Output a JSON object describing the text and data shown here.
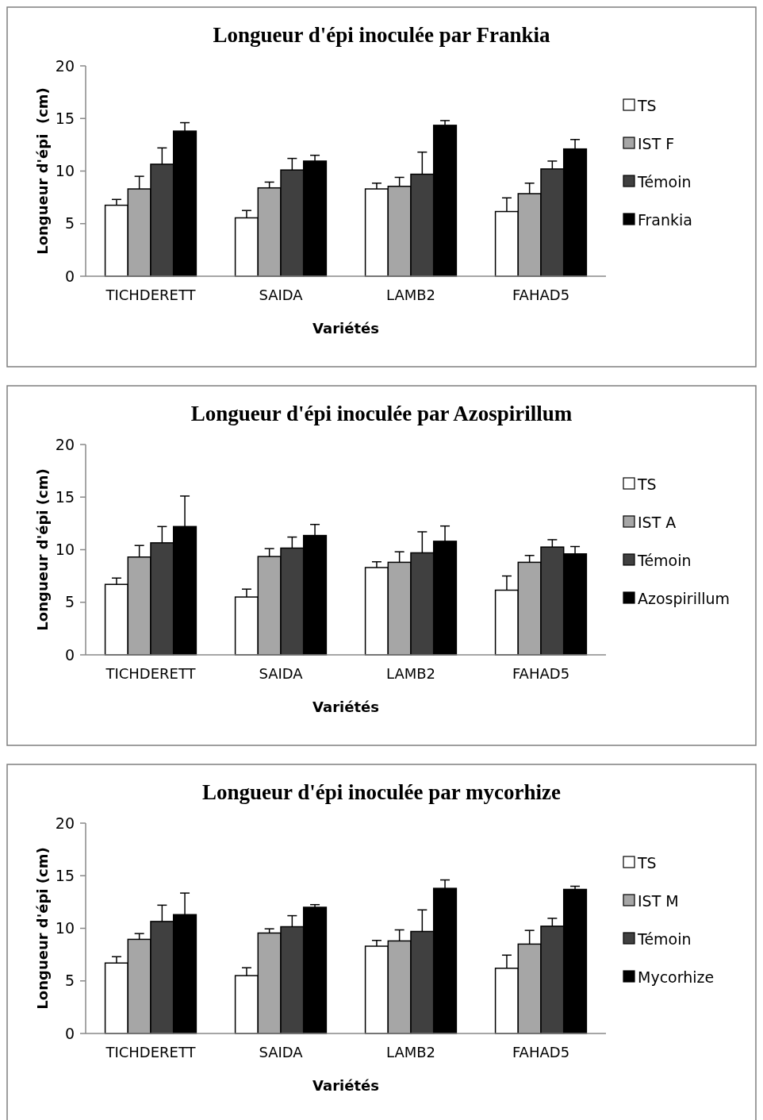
{
  "chart_data": [
    {
      "type": "bar",
      "title": "Longueur d'épi inoculée par Frankia",
      "xlabel": "Variétés",
      "ylabel": "Longueur d'épi  (cm)",
      "categories": [
        "TICHDERETT",
        "SAIDA",
        "LAMB2",
        "FAHAD5"
      ],
      "ylim": [
        0,
        20
      ],
      "yticks": [
        0,
        5,
        10,
        15,
        20
      ],
      "grid": false,
      "legend": "right",
      "series": [
        {
          "name": "TS",
          "color": "#ffffff",
          "values": [
            6.75,
            5.55,
            8.3,
            6.15
          ],
          "errors": [
            [
              6.75,
              7.3
            ],
            [
              5.55,
              6.25
            ],
            [
              8.3,
              8.85
            ],
            [
              6.15,
              7.45
            ]
          ]
        },
        {
          "name": "IST F",
          "color": "#a6a6a6",
          "values": [
            8.3,
            8.4,
            8.55,
            7.85
          ],
          "errors": [
            [
              8.3,
              9.5
            ],
            [
              8.4,
              8.95
            ],
            [
              8.55,
              9.4
            ],
            [
              7.85,
              8.85
            ]
          ]
        },
        {
          "name": "Témoin",
          "color": "#404040",
          "values": [
            10.65,
            10.1,
            9.7,
            10.2
          ],
          "errors": [
            [
              10.65,
              12.2
            ],
            [
              10.1,
              11.2
            ],
            [
              9.7,
              11.8
            ],
            [
              10.2,
              10.95
            ]
          ]
        },
        {
          "name": "Frankia",
          "color": "#000000",
          "values": [
            13.8,
            10.95,
            14.35,
            12.1
          ],
          "errors": [
            [
              13.8,
              14.6
            ],
            [
              10.95,
              11.5
            ],
            [
              14.35,
              14.8
            ],
            [
              12.1,
              13
            ]
          ]
        }
      ]
    },
    {
      "type": "bar",
      "title": "Longueur d'épi inoculée par Azospirillum",
      "xlabel": "Variétés",
      "ylabel": "Longueur d'épi (cm)",
      "categories": [
        "TICHDERETT",
        "SAIDA",
        "LAMB2",
        "FAHAD5"
      ],
      "ylim": [
        0,
        20
      ],
      "yticks": [
        0,
        5,
        10,
        15,
        20
      ],
      "grid": false,
      "legend": "right",
      "series": [
        {
          "name": "TS",
          "color": "#ffffff",
          "values": [
            6.7,
            5.5,
            8.3,
            6.15
          ],
          "errors": [
            [
              6.7,
              7.3
            ],
            [
              5.5,
              6.25
            ],
            [
              8.3,
              8.85
            ],
            [
              6.15,
              7.5
            ]
          ]
        },
        {
          "name": "IST A",
          "color": "#a6a6a6",
          "values": [
            9.3,
            9.35,
            8.8,
            8.8
          ],
          "errors": [
            [
              9.3,
              10.4
            ],
            [
              9.35,
              10.1
            ],
            [
              8.8,
              9.8
            ],
            [
              8.8,
              9.45
            ]
          ]
        },
        {
          "name": "Témoin",
          "color": "#404040",
          "values": [
            10.65,
            10.15,
            9.7,
            10.25
          ],
          "errors": [
            [
              10.65,
              12.2
            ],
            [
              10.15,
              11.2
            ],
            [
              9.7,
              11.7
            ],
            [
              10.25,
              10.95
            ]
          ]
        },
        {
          "name": "Azospirillum",
          "color": "#000000",
          "values": [
            12.2,
            11.35,
            10.8,
            9.6
          ],
          "errors": [
            [
              12.2,
              15.1
            ],
            [
              11.35,
              12.4
            ],
            [
              10.8,
              12.25
            ],
            [
              9.6,
              10.3
            ]
          ]
        }
      ]
    },
    {
      "type": "bar",
      "title": "Longueur d'épi inoculée par mycorhize",
      "xlabel": "Variétés",
      "ylabel": "Longueur d'épi (cm)",
      "categories": [
        "TICHDERETT",
        "SAIDA",
        "LAMB2",
        "FAHAD5"
      ],
      "ylim": [
        0,
        20
      ],
      "yticks": [
        0,
        5,
        10,
        15,
        20
      ],
      "grid": false,
      "legend": "right",
      "series": [
        {
          "name": "TS",
          "color": "#ffffff",
          "values": [
            6.7,
            5.5,
            8.3,
            6.2
          ],
          "errors": [
            [
              6.7,
              7.3
            ],
            [
              5.5,
              6.25
            ],
            [
              8.3,
              8.85
            ],
            [
              6.2,
              7.45
            ]
          ]
        },
        {
          "name": "IST M",
          "color": "#a6a6a6",
          "values": [
            8.95,
            9.55,
            8.8,
            8.5
          ],
          "errors": [
            [
              8.95,
              9.5
            ],
            [
              9.55,
              9.95
            ],
            [
              8.8,
              9.85
            ],
            [
              8.5,
              9.8
            ]
          ]
        },
        {
          "name": "Témoin",
          "color": "#404040",
          "values": [
            10.65,
            10.15,
            9.7,
            10.2
          ],
          "errors": [
            [
              10.65,
              12.2
            ],
            [
              10.15,
              11.2
            ],
            [
              9.7,
              11.75
            ],
            [
              10.2,
              10.95
            ]
          ]
        },
        {
          "name": "Mycorhize",
          "color": "#000000",
          "values": [
            11.3,
            12,
            13.8,
            13.7
          ],
          "errors": [
            [
              11.3,
              13.35
            ],
            [
              12,
              12.25
            ],
            [
              13.8,
              14.6
            ],
            [
              13.7,
              14
            ]
          ]
        }
      ]
    }
  ]
}
